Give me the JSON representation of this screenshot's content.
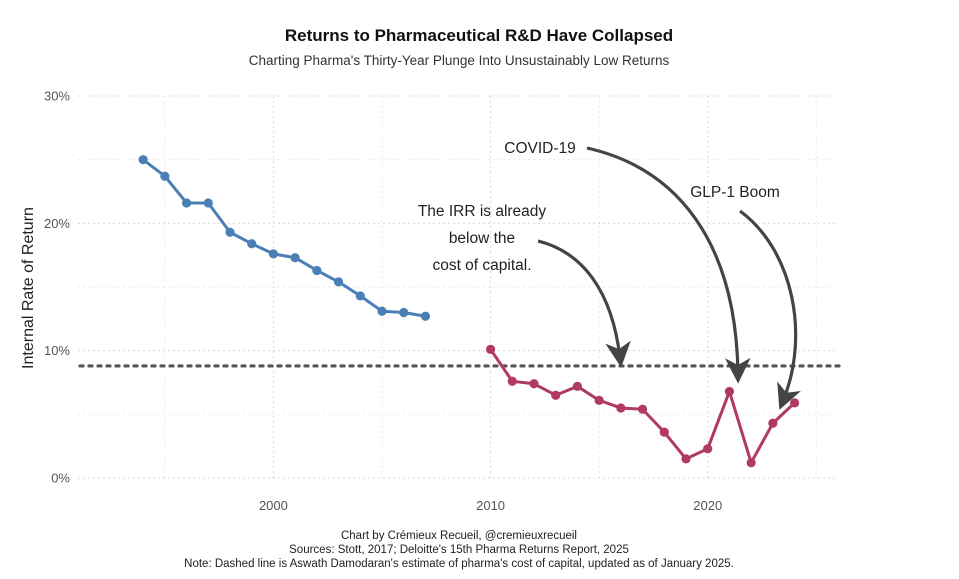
{
  "chart_data": {
    "type": "line",
    "title": "Returns to Pharmaceutical R&D Have Collapsed",
    "subtitle": "Charting Pharma's Thirty-Year Plunge Into Unsustainably Low Returns",
    "ylabel": "Internal Rate of Return",
    "xlabel": "",
    "xlim": [
      1991,
      2026
    ],
    "ylim": [
      0,
      30
    ],
    "x_ticks": [
      2000,
      2010,
      2020
    ],
    "x_tick_labels": [
      "2000",
      "2010",
      "2020"
    ],
    "y_ticks": [
      0,
      10,
      20,
      30
    ],
    "y_tick_labels": [
      "0%",
      "10%",
      "20%",
      "30%"
    ],
    "grid": true,
    "series": [
      {
        "name": "Stott, 2017",
        "color": "#4a7fb5",
        "x": [
          1994,
          1995,
          1996,
          1997,
          1998,
          1999,
          2000,
          2001,
          2002,
          2003,
          2004,
          2005,
          2006,
          2007
        ],
        "values": [
          25.0,
          23.7,
          21.6,
          21.6,
          19.3,
          18.4,
          17.6,
          17.3,
          16.3,
          15.4,
          14.3,
          13.1,
          13.0,
          12.7
        ]
      },
      {
        "name": "Deloitte's 15th Pharma Returns Report",
        "color": "#b03b5f",
        "x": [
          2010,
          2011,
          2012,
          2013,
          2014,
          2015,
          2016,
          2017,
          2018,
          2019,
          2020,
          2021,
          2022,
          2023,
          2024
        ],
        "values": [
          10.1,
          7.6,
          7.4,
          6.5,
          7.2,
          6.1,
          5.5,
          5.4,
          3.6,
          1.5,
          2.3,
          6.8,
          1.2,
          4.3,
          5.9
        ]
      }
    ],
    "reference_line": {
      "value": 8.8,
      "style": "dotted",
      "color": "#555555",
      "label": "cost of capital"
    },
    "annotations": [
      {
        "lines": [
          "The IRR is already",
          "below the",
          "cost of capital."
        ]
      },
      {
        "lines": [
          "COVID-19"
        ]
      },
      {
        "lines": [
          "GLP-1 Boom"
        ]
      }
    ],
    "notes": [
      "Chart by Crémieux Recueil, @cremieuxrecueil",
      "Sources: Stott, 2017; Deloitte's 15th Pharma Returns Report, 2025",
      "Note: Dashed line is Aswath Damodaran's estimate of pharma's cost of capital, updated as of January 2025."
    ]
  }
}
